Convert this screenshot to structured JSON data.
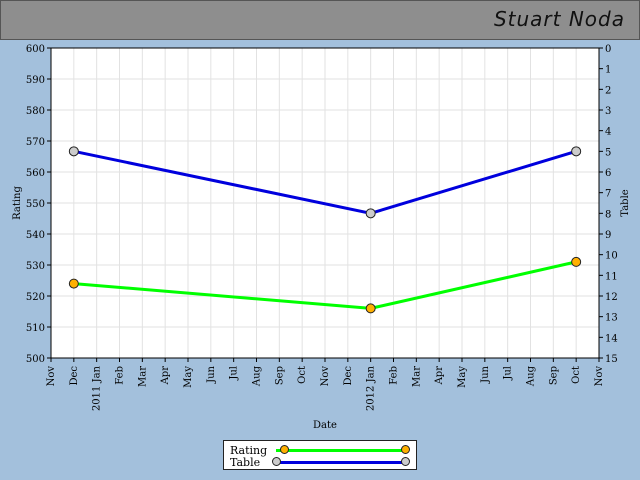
{
  "header": {
    "title": "Stuart Noda"
  },
  "legend": {
    "items": [
      {
        "label": "Rating",
        "color": "#00ff00",
        "marker_color": "#ffb000"
      },
      {
        "label": "Table",
        "color": "#0000dd",
        "marker_color": "#cccccc"
      }
    ]
  },
  "chart_data": {
    "type": "line",
    "xlabel": "Date",
    "ylabel": "Rating",
    "y2label": "Table",
    "ylim": [
      500,
      600
    ],
    "y2lim": [
      0,
      15
    ],
    "y2_inverted": true,
    "x_ticks": [
      "Nov",
      "Dec",
      "2011 Jan",
      "Feb",
      "Mar",
      "Apr",
      "May",
      "Jun",
      "Jul",
      "Aug",
      "Sep",
      "Oct",
      "Nov",
      "Dec",
      "2012 Jan",
      "Feb",
      "Mar",
      "Apr",
      "May",
      "Jun",
      "Jul",
      "Aug",
      "Sep",
      "Oct",
      "Nov"
    ],
    "y_ticks": [
      500,
      510,
      520,
      530,
      540,
      550,
      560,
      570,
      580,
      590,
      600
    ],
    "y2_ticks": [
      0,
      1,
      2,
      3,
      4,
      5,
      6,
      7,
      8,
      9,
      10,
      11,
      12,
      13,
      14,
      15
    ],
    "grid": true,
    "series": [
      {
        "name": "Rating",
        "axis": "left",
        "color": "#00ff00",
        "marker_color": "#ffb000",
        "x": [
          "2010-12",
          "2012-01",
          "2012-10"
        ],
        "values": [
          524,
          516,
          531
        ]
      },
      {
        "name": "Table",
        "axis": "right",
        "color": "#0000dd",
        "marker_color": "#cccccc",
        "x": [
          "2010-12",
          "2012-01",
          "2012-10"
        ],
        "values": [
          5,
          8,
          5
        ]
      }
    ]
  }
}
